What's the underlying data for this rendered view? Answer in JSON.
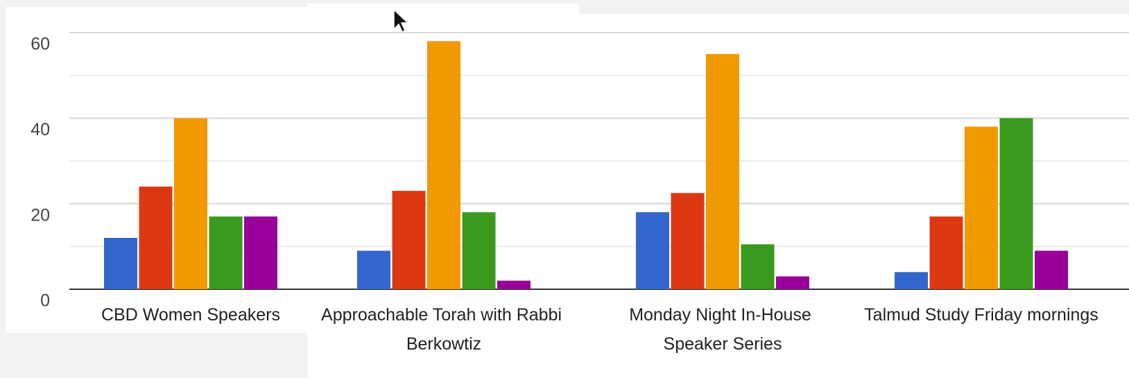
{
  "chart_data": {
    "type": "bar",
    "categories": [
      "CBD Women Speakers",
      "Approachable Torah with Rabbi Berkowtiz",
      "Monday Night In-House Speaker Series",
      "Talmud Study Friday mornings"
    ],
    "series": [
      {
        "color": "#3366cc",
        "values": [
          12,
          9,
          18,
          4
        ]
      },
      {
        "color": "#dc3912",
        "values": [
          24,
          23,
          22.5,
          17
        ]
      },
      {
        "color": "#f09a00",
        "values": [
          40,
          58,
          55,
          38
        ]
      },
      {
        "color": "#3a9a1e",
        "values": [
          17,
          18,
          10.5,
          40
        ]
      },
      {
        "color": "#990099",
        "values": [
          17,
          2,
          3,
          9
        ]
      }
    ],
    "ylim": [
      0,
      60
    ],
    "yticks": [
      0,
      20,
      40,
      60
    ],
    "minor_yticks": [
      10,
      30,
      50
    ],
    "grid": true
  }
}
